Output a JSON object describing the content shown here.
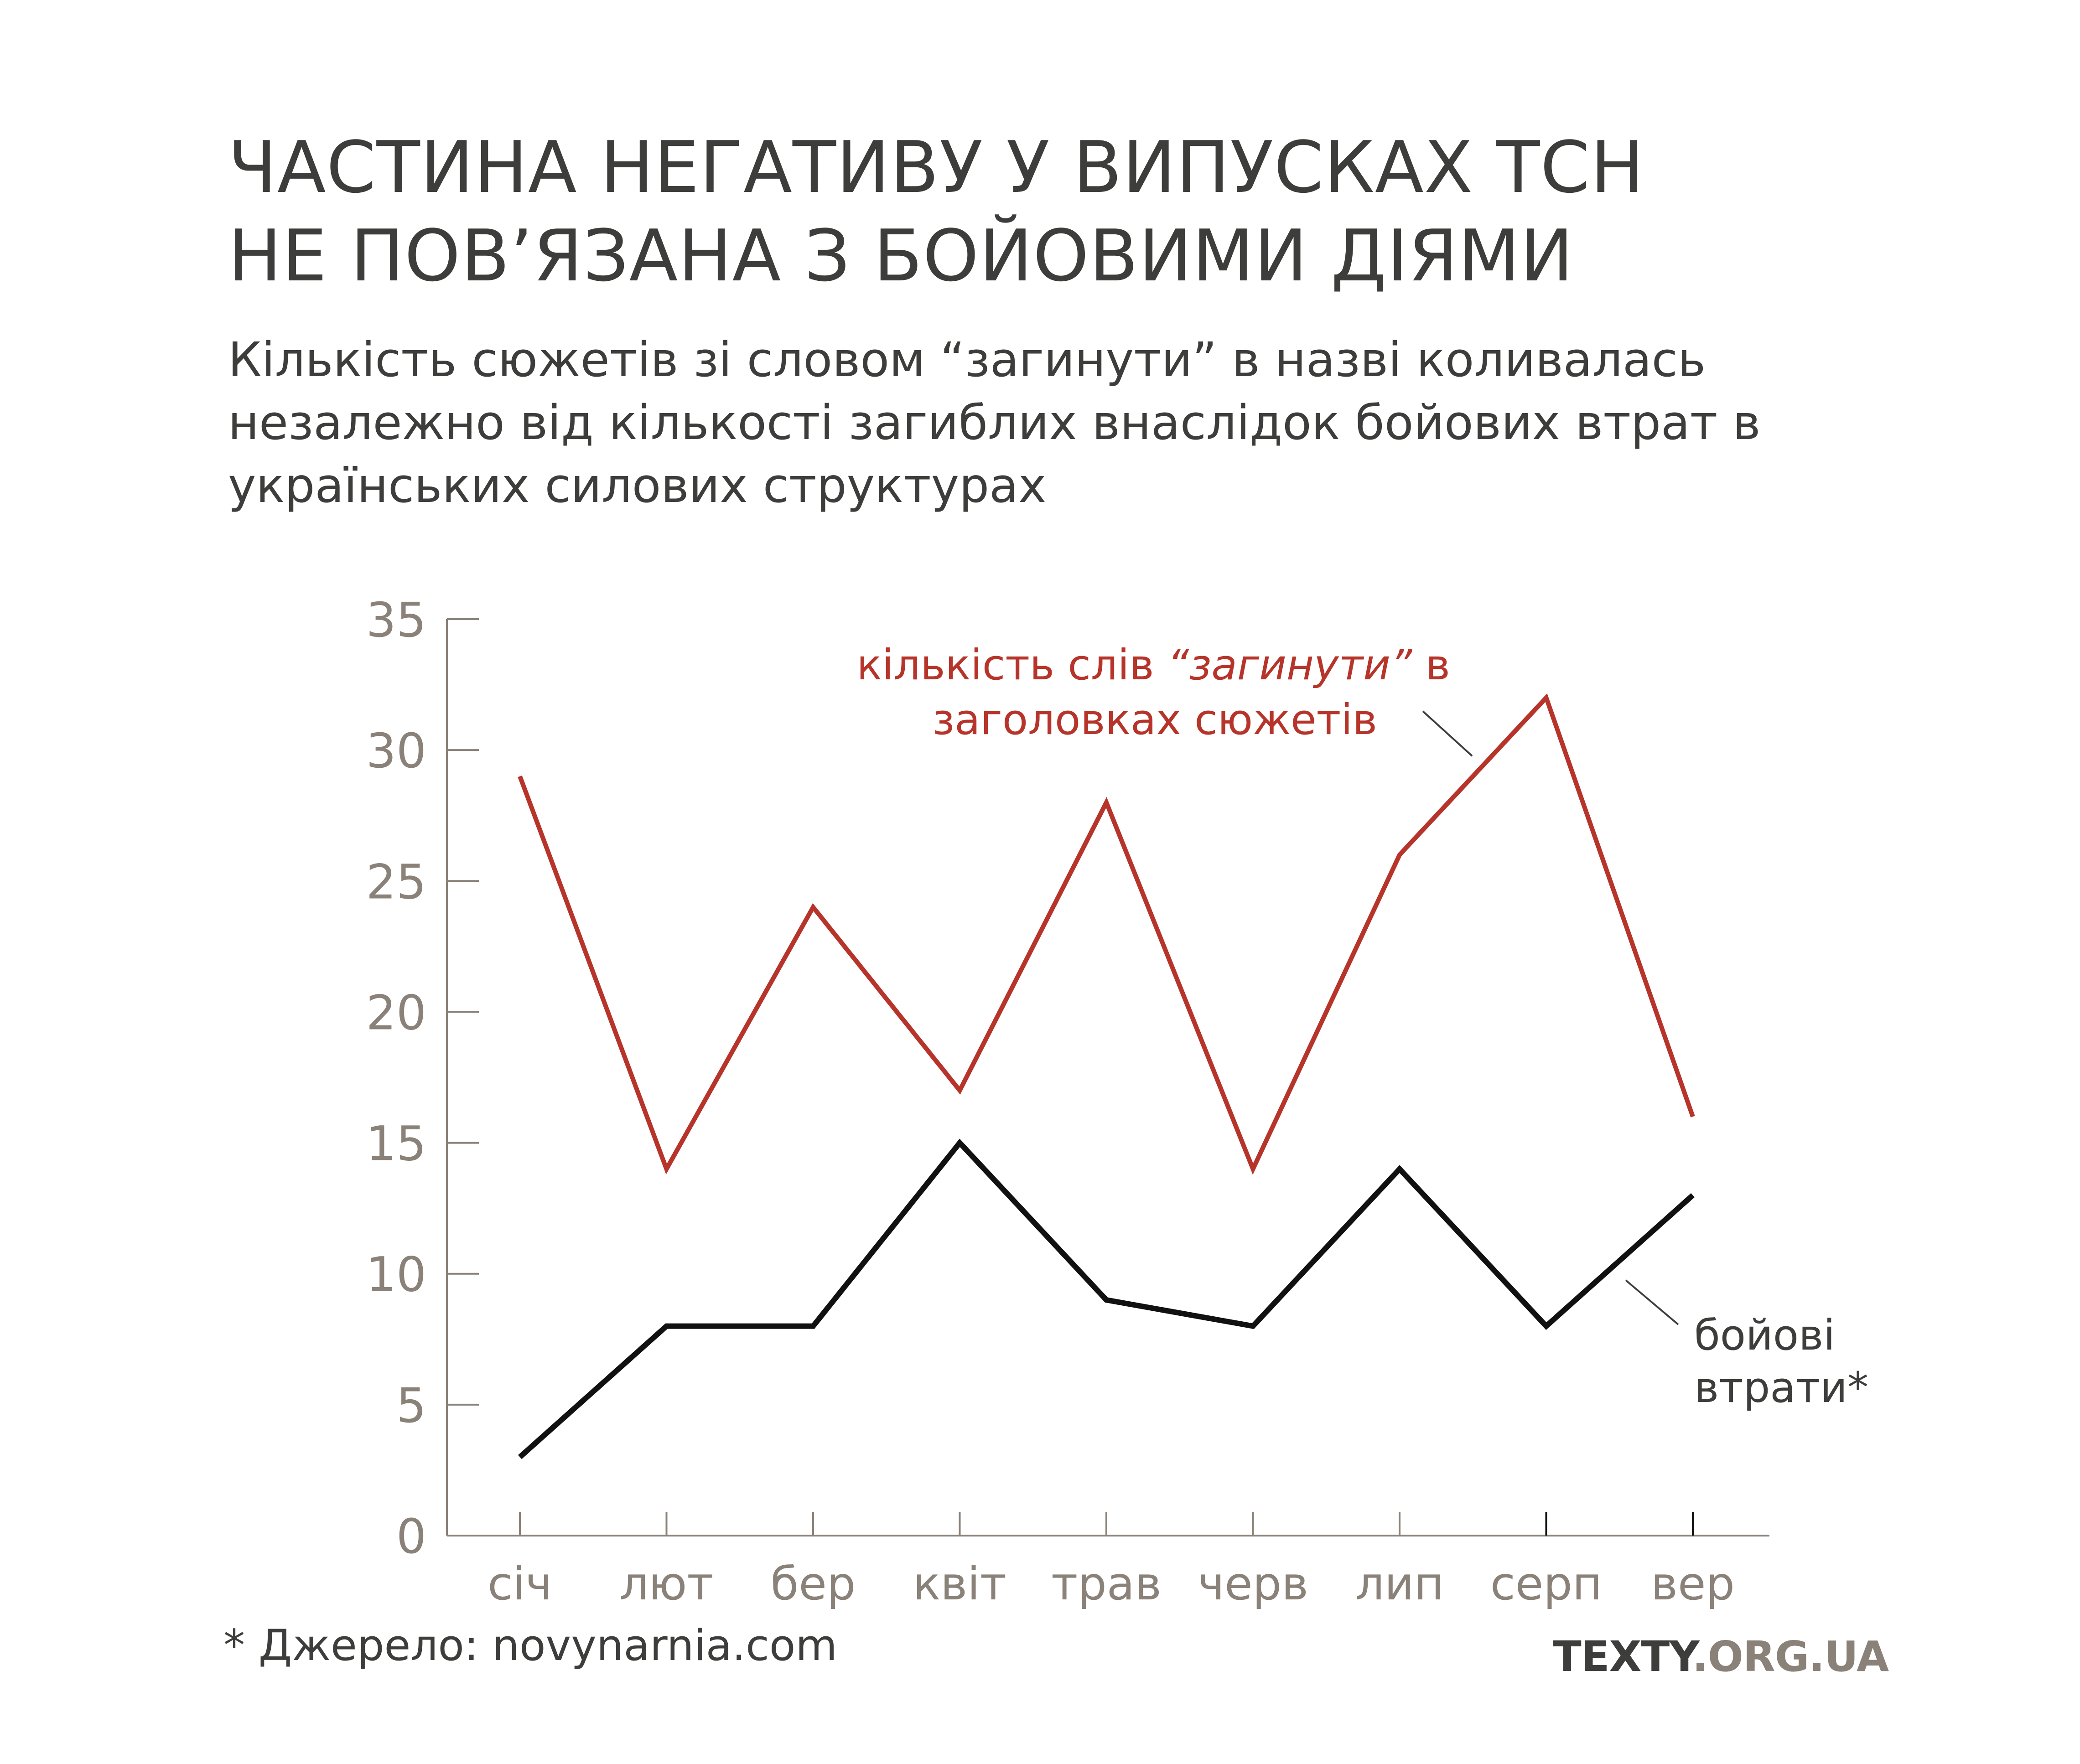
{
  "title": {
    "line1": "ЧАСТИНА НЕГАТИВУ У ВИПУСКАХ ТСН",
    "line2": "НЕ ПОВ’ЯЗАНА З БОЙОВИМИ ДІЯМИ"
  },
  "subtitle": {
    "line1": "Кількість сюжетів зі словом “загинути” в назві коливалась",
    "line2": "незалежно від кількості загиблих внаслідок бойових втрат в",
    "line3": "українських силових структурах"
  },
  "source": "* Джерело: novynarnia.com",
  "brand": {
    "part1": "TEXTY",
    "part2": ".ORG.UA"
  },
  "colors": {
    "red": "#b6342a",
    "black": "#111111",
    "axis": "#8a8179",
    "text": "#3d3d3b"
  },
  "chart_data": {
    "type": "line",
    "categories": [
      "січ",
      "лют",
      "бер",
      "квіт",
      "трав",
      "черв",
      "лип",
      "серп",
      "вер"
    ],
    "ylim": [
      0,
      35
    ],
    "yticks": [
      0,
      5,
      10,
      15,
      20,
      25,
      30,
      35
    ],
    "grid": false,
    "series": [
      {
        "name": "кількість слів “загинути” в заголовках сюжетів",
        "label_parts": {
          "pre": "кількість слів ",
          "italic": "“загинути”",
          "post": " в",
          "line2": "заголовках сюжетів"
        },
        "color": "#b6342a",
        "values": [
          29,
          14,
          24,
          17,
          28,
          14,
          26,
          32,
          16
        ]
      },
      {
        "name": "бойові втрати*",
        "label_parts": {
          "line1": "бойові",
          "line2": "втрати*"
        },
        "color": "#111111",
        "values": [
          3,
          8,
          8,
          15,
          9,
          8,
          14,
          8,
          13
        ]
      }
    ]
  }
}
